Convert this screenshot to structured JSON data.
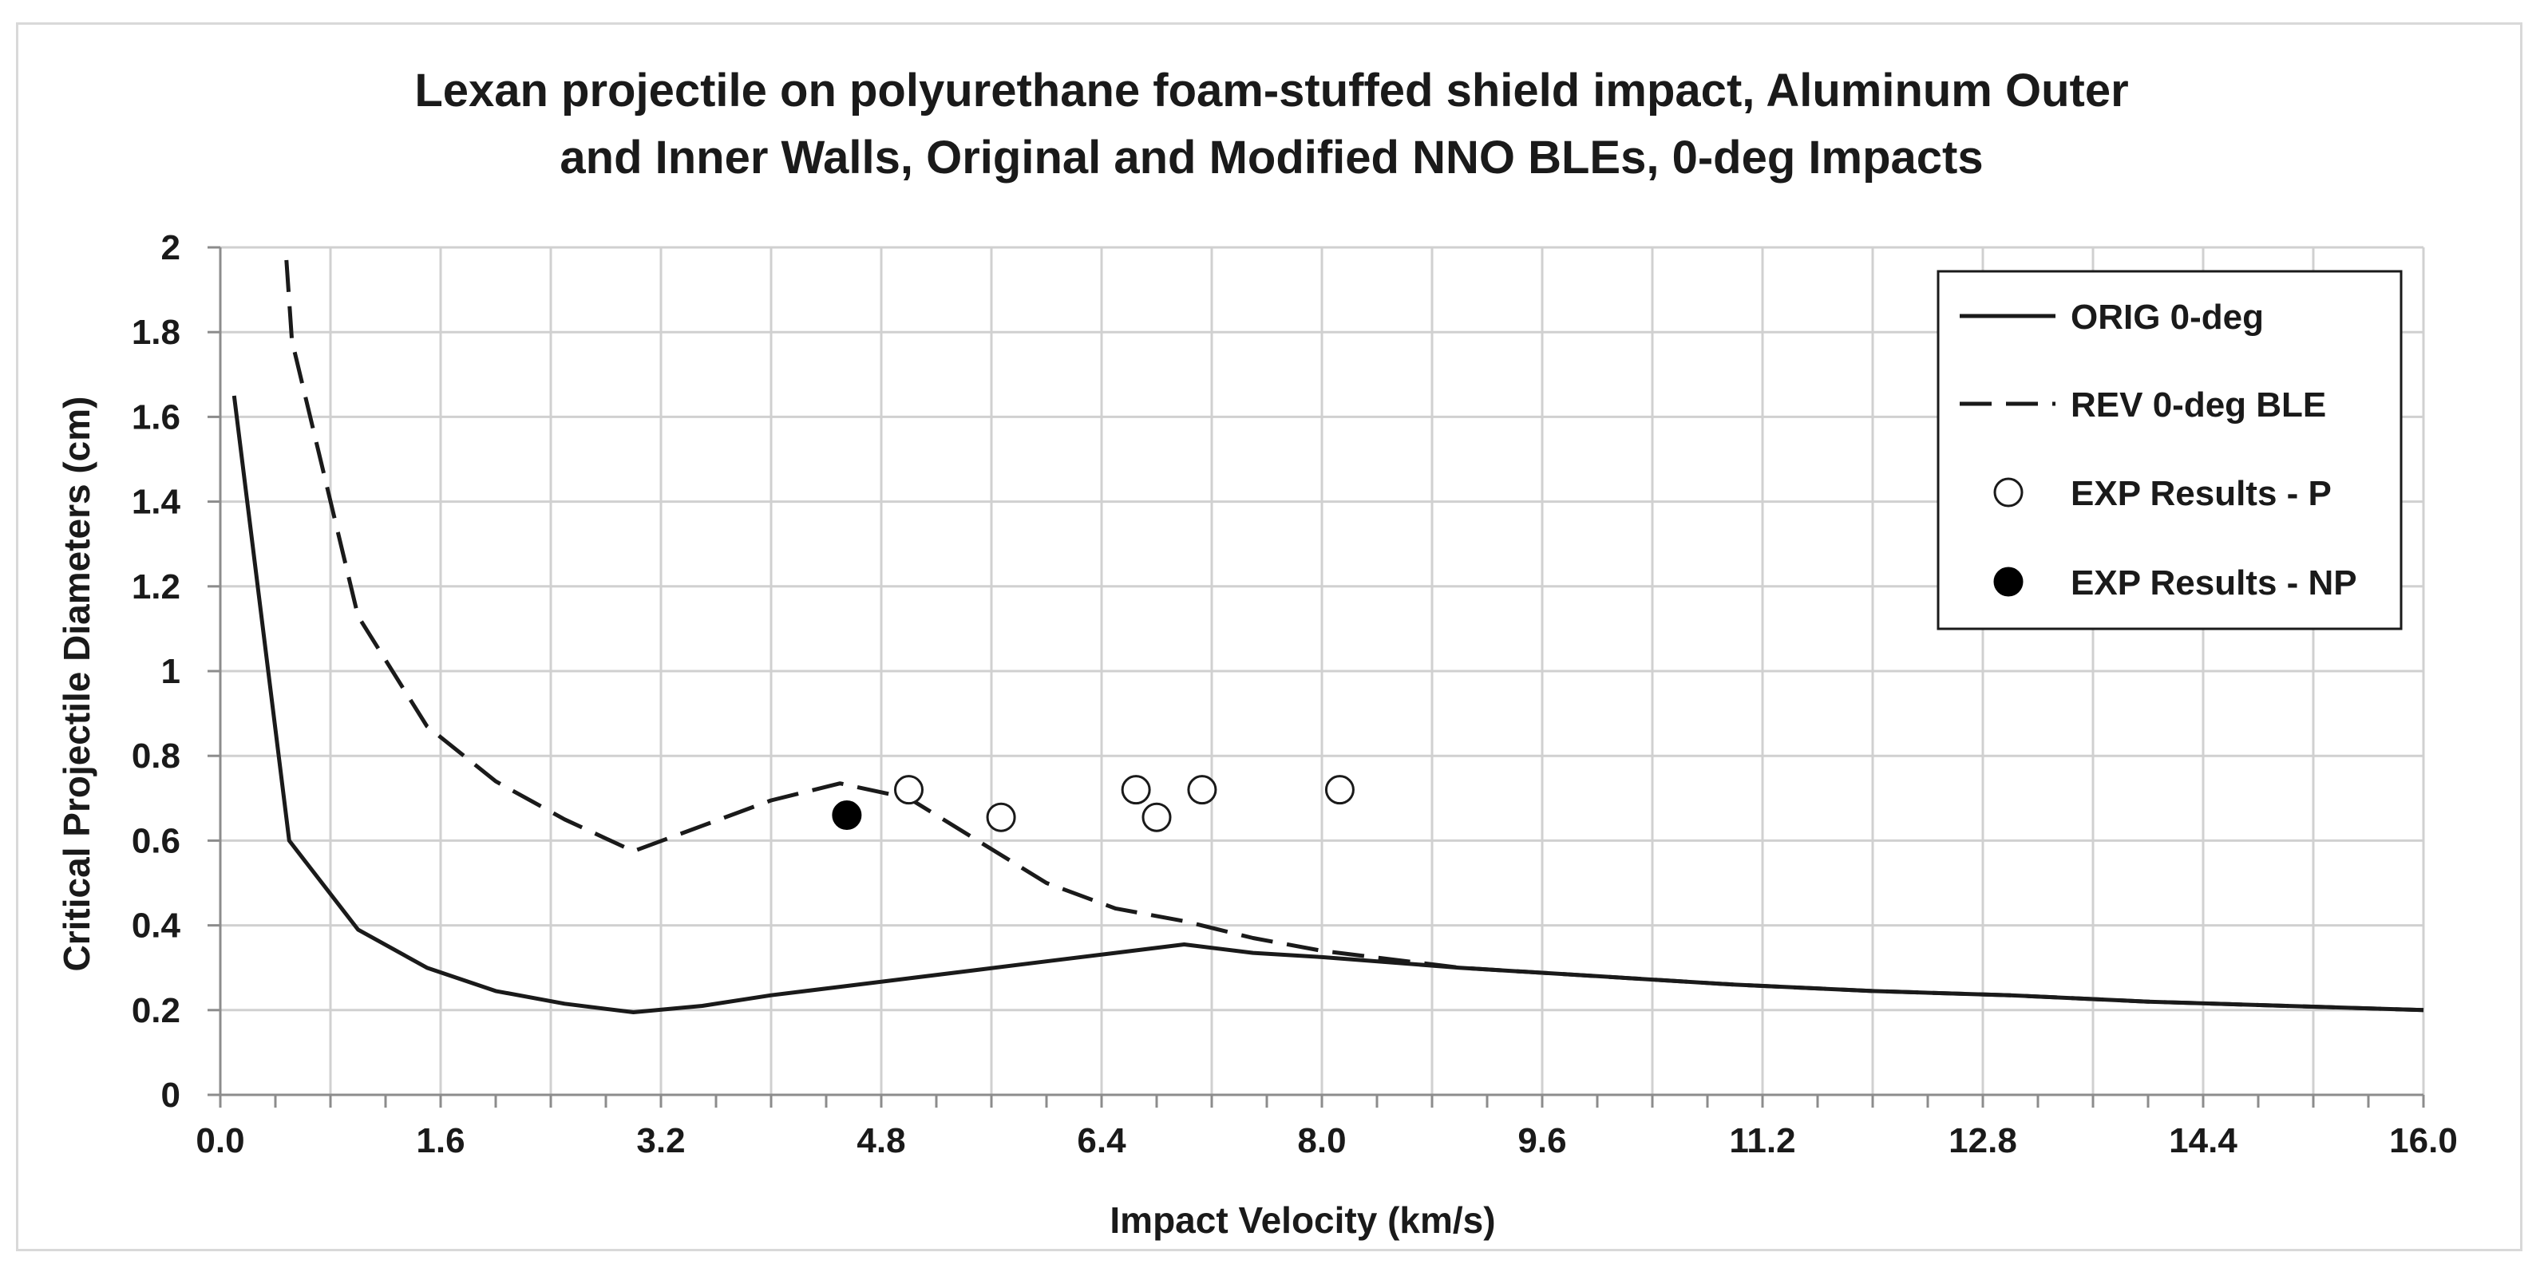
{
  "chart_data": {
    "type": "line",
    "title": [
      "Lexan projectile on polyurethane foam-stuffed shield impact, Aluminum Outer",
      "and Inner Walls, Original and Modified NNO BLEs, 0-deg Impacts"
    ],
    "xlabel": "Impact Velocity (km/s)",
    "ylabel": "Critical Projectile Diameters (cm)",
    "xlim": [
      0,
      16
    ],
    "ylim": [
      0,
      2
    ],
    "x_ticks": [
      "0.0",
      "1.6",
      "3.2",
      "4.8",
      "6.4",
      "8.0",
      "9.6",
      "11.2",
      "12.8",
      "14.4",
      "16.0"
    ],
    "y_ticks": [
      "0",
      "0.2",
      "0.4",
      "0.6",
      "0.8",
      "1",
      "1.2",
      "1.4",
      "1.6",
      "1.8",
      "2"
    ],
    "grid": true,
    "legend_position": "top-right",
    "series": [
      {
        "name": "ORIG 0-deg",
        "style": "solid",
        "points": [
          [
            0.1,
            1.65
          ],
          [
            0.5,
            0.6
          ],
          [
            1.0,
            0.39
          ],
          [
            1.5,
            0.3
          ],
          [
            2.0,
            0.245
          ],
          [
            2.5,
            0.215
          ],
          [
            3.0,
            0.195
          ],
          [
            3.5,
            0.21
          ],
          [
            4.0,
            0.235
          ],
          [
            4.5,
            0.255
          ],
          [
            5.0,
            0.275
          ],
          [
            5.5,
            0.295
          ],
          [
            6.0,
            0.315
          ],
          [
            6.5,
            0.335
          ],
          [
            7.0,
            0.355
          ],
          [
            7.5,
            0.335
          ],
          [
            8.0,
            0.325
          ],
          [
            9.0,
            0.3
          ],
          [
            10.0,
            0.28
          ],
          [
            11.0,
            0.26
          ],
          [
            12.0,
            0.245
          ],
          [
            13.0,
            0.235
          ],
          [
            14.0,
            0.22
          ],
          [
            15.0,
            0.21
          ],
          [
            16.0,
            0.2
          ]
        ]
      },
      {
        "name": "REV 0-deg BLE",
        "style": "dashed",
        "points": [
          [
            0.48,
            1.97
          ],
          [
            0.52,
            1.78
          ],
          [
            1.0,
            1.13
          ],
          [
            1.5,
            0.87
          ],
          [
            2.0,
            0.74
          ],
          [
            2.5,
            0.65
          ],
          [
            3.0,
            0.575
          ],
          [
            3.5,
            0.635
          ],
          [
            4.0,
            0.695
          ],
          [
            4.5,
            0.735
          ],
          [
            5.0,
            0.7
          ],
          [
            5.5,
            0.6
          ],
          [
            6.0,
            0.5
          ],
          [
            6.5,
            0.44
          ],
          [
            7.0,
            0.41
          ],
          [
            7.5,
            0.37
          ],
          [
            8.0,
            0.34
          ],
          [
            9.0,
            0.3
          ],
          [
            10.0,
            0.28
          ],
          [
            11.0,
            0.26
          ],
          [
            12.0,
            0.245
          ],
          [
            13.0,
            0.235
          ],
          [
            14.0,
            0.22
          ],
          [
            15.0,
            0.21
          ],
          [
            16.0,
            0.2
          ]
        ]
      },
      {
        "name": "EXP Results - P",
        "style": "open-circle",
        "points": [
          [
            5.0,
            0.72
          ],
          [
            5.67,
            0.655
          ],
          [
            6.65,
            0.72
          ],
          [
            6.8,
            0.655
          ],
          [
            7.13,
            0.72
          ],
          [
            8.13,
            0.72
          ]
        ]
      },
      {
        "name": "EXP Results - NP",
        "style": "filled-circle",
        "points": [
          [
            4.55,
            0.66
          ]
        ]
      }
    ]
  }
}
